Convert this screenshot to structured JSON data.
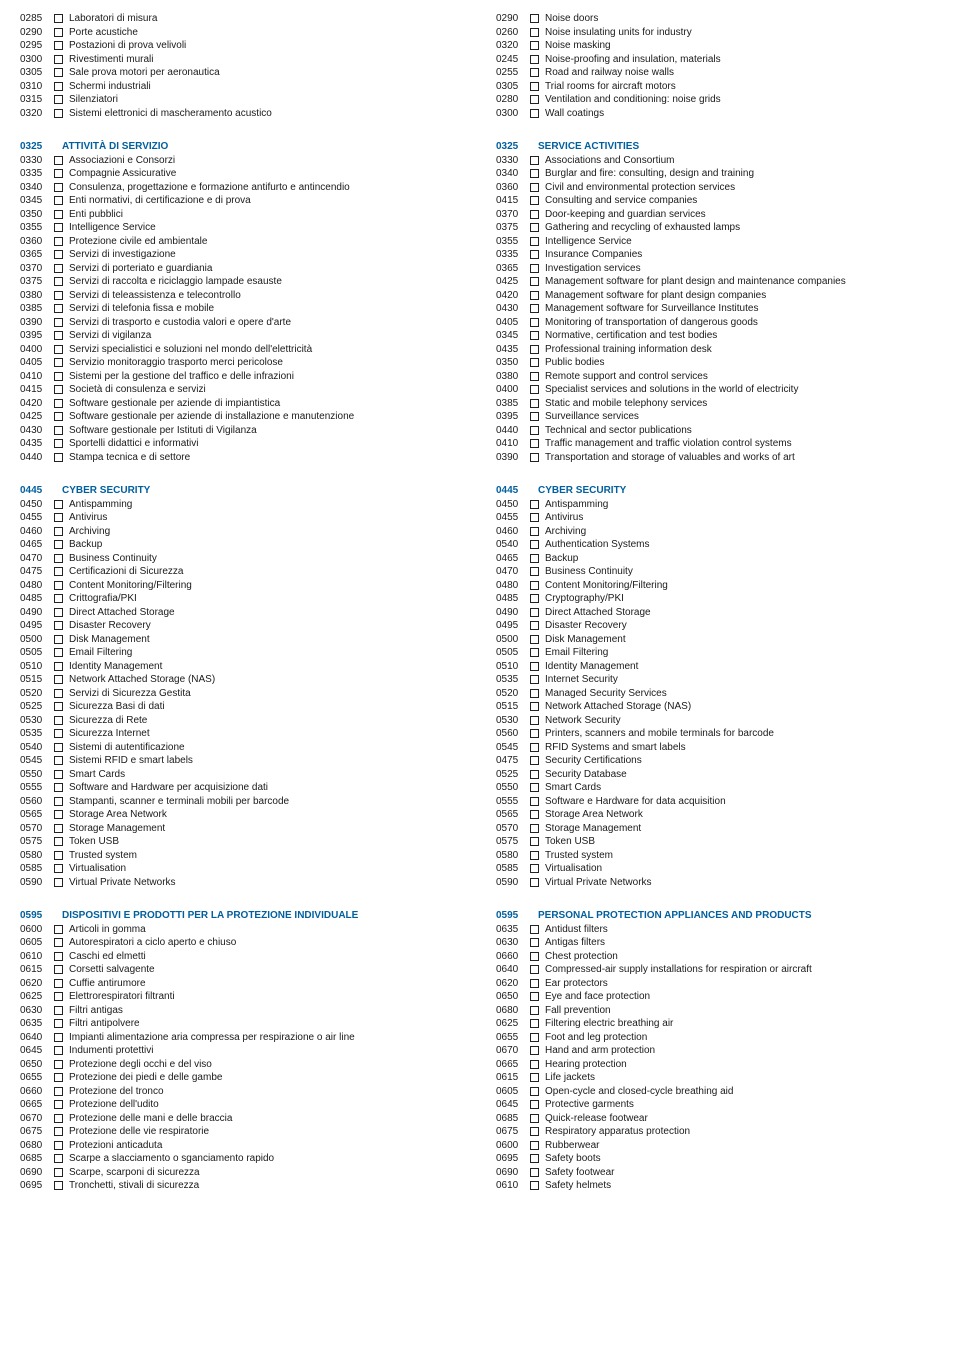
{
  "accent_color": "#005f9e",
  "text_color": "#1a1a1a",
  "left": [
    {
      "type": "items",
      "items": [
        {
          "code": "0285",
          "label": "Laboratori di misura"
        },
        {
          "code": "0290",
          "label": "Porte acustiche"
        },
        {
          "code": "0295",
          "label": "Postazioni di prova velivoli"
        },
        {
          "code": "0300",
          "label": "Rivestimenti murali"
        },
        {
          "code": "0305",
          "label": "Sale prova motori per aeronautica"
        },
        {
          "code": "0310",
          "label": "Schermi industriali"
        },
        {
          "code": "0315",
          "label": "Silenziatori"
        },
        {
          "code": "0320",
          "label": "Sistemi elettronici di mascheramento acustico"
        }
      ]
    },
    {
      "type": "section",
      "code": "0325",
      "title": "ATTIVITÀ DI SERVIZIO",
      "items": [
        {
          "code": "0330",
          "label": "Associazioni e Consorzi"
        },
        {
          "code": "0335",
          "label": "Compagnie Assicurative"
        },
        {
          "code": "0340",
          "label": "Consulenza, progettazione e formazione antifurto e antincendio"
        },
        {
          "code": "0345",
          "label": "Enti normativi, di certificazione e di prova"
        },
        {
          "code": "0350",
          "label": "Enti pubblici"
        },
        {
          "code": "0355",
          "label": "Intelligence Service"
        },
        {
          "code": "0360",
          "label": "Protezione civile ed ambientale"
        },
        {
          "code": "0365",
          "label": "Servizi di investigazione"
        },
        {
          "code": "0370",
          "label": "Servizi di porteriato e guardiania"
        },
        {
          "code": "0375",
          "label": "Servizi di raccolta e riciclaggio lampade esauste"
        },
        {
          "code": "0380",
          "label": "Servizi di teleassistenza e telecontrollo"
        },
        {
          "code": "0385",
          "label": "Servizi di telefonia fissa e mobile"
        },
        {
          "code": "0390",
          "label": "Servizi di trasporto e custodia valori e opere d'arte"
        },
        {
          "code": "0395",
          "label": "Servizi di vigilanza"
        },
        {
          "code": "0400",
          "label": "Servizi specialistici e soluzioni nel mondo dell'elettricità"
        },
        {
          "code": "0405",
          "label": "Servizio monitoraggio trasporto merci pericolose"
        },
        {
          "code": "0410",
          "label": "Sistemi per la gestione del traffico e delle infrazioni"
        },
        {
          "code": "0415",
          "label": "Società di consulenza e servizi"
        },
        {
          "code": "0420",
          "label": "Software gestionale per aziende di impiantistica"
        },
        {
          "code": "0425",
          "label": "Software gestionale per aziende di installazione e manutenzione"
        },
        {
          "code": "0430",
          "label": "Software gestionale per Istituti di Vigilanza"
        },
        {
          "code": "0435",
          "label": "Sportelli didattici e informativi"
        },
        {
          "code": "0440",
          "label": "Stampa tecnica e di settore"
        }
      ]
    },
    {
      "type": "section",
      "code": "0445",
      "title": "CYBER SECURITY",
      "items": [
        {
          "code": "0450",
          "label": "Antispamming"
        },
        {
          "code": "0455",
          "label": "Antivirus"
        },
        {
          "code": "0460",
          "label": "Archiving"
        },
        {
          "code": "0465",
          "label": "Backup"
        },
        {
          "code": "0470",
          "label": "Business Continuity"
        },
        {
          "code": "0475",
          "label": "Certificazioni di Sicurezza"
        },
        {
          "code": "0480",
          "label": "Content Monitoring/Filtering"
        },
        {
          "code": "0485",
          "label": "Crittografia/PKI"
        },
        {
          "code": "0490",
          "label": "Direct Attached Storage"
        },
        {
          "code": "0495",
          "label": "Disaster Recovery"
        },
        {
          "code": "0500",
          "label": "Disk Management"
        },
        {
          "code": "0505",
          "label": "Email Filtering"
        },
        {
          "code": "0510",
          "label": "Identity Management"
        },
        {
          "code": "0515",
          "label": "Network Attached Storage (NAS)"
        },
        {
          "code": "0520",
          "label": "Servizi di Sicurezza Gestita"
        },
        {
          "code": "0525",
          "label": "Sicurezza Basi di dati"
        },
        {
          "code": "0530",
          "label": "Sicurezza di Rete"
        },
        {
          "code": "0535",
          "label": "Sicurezza Internet"
        },
        {
          "code": "0540",
          "label": "Sistemi di autentificazione"
        },
        {
          "code": "0545",
          "label": "Sistemi RFID e smart labels"
        },
        {
          "code": "0550",
          "label": "Smart Cards"
        },
        {
          "code": "0555",
          "label": "Software and Hardware per acquisizione dati"
        },
        {
          "code": "0560",
          "label": "Stampanti, scanner e terminali mobili per barcode"
        },
        {
          "code": "0565",
          "label": "Storage Area Network"
        },
        {
          "code": "0570",
          "label": "Storage Management"
        },
        {
          "code": "0575",
          "label": "Token USB"
        },
        {
          "code": "0580",
          "label": "Trusted system"
        },
        {
          "code": "0585",
          "label": "Virtualisation"
        },
        {
          "code": "0590",
          "label": "Virtual Private Networks"
        }
      ]
    },
    {
      "type": "section",
      "code": "0595",
      "title": "DISPOSITIVI E PRODOTTI PER LA PROTEZIONE INDIVIDUALE",
      "items": [
        {
          "code": "0600",
          "label": "Articoli in gomma"
        },
        {
          "code": "0605",
          "label": "Autorespiratori a ciclo aperto e chiuso"
        },
        {
          "code": "0610",
          "label": "Caschi ed elmetti"
        },
        {
          "code": "0615",
          "label": "Corsetti salvagente"
        },
        {
          "code": "0620",
          "label": "Cuffie antirumore"
        },
        {
          "code": "0625",
          "label": "Elettrorespiratori filtranti"
        },
        {
          "code": "0630",
          "label": "Filtri antigas"
        },
        {
          "code": "0635",
          "label": "Filtri antipolvere"
        },
        {
          "code": "0640",
          "label": "Impianti alimentazione aria compressa per respirazione o air line"
        },
        {
          "code": "0645",
          "label": "Indumenti protettivi"
        },
        {
          "code": "0650",
          "label": "Protezione degli occhi e del viso"
        },
        {
          "code": "0655",
          "label": "Protezione dei piedi e delle gambe"
        },
        {
          "code": "0660",
          "label": "Protezione del tronco"
        },
        {
          "code": "0665",
          "label": "Protezione dell'udito"
        },
        {
          "code": "0670",
          "label": "Protezione delle mani e delle braccia"
        },
        {
          "code": "0675",
          "label": "Protezione delle vie respiratorie"
        },
        {
          "code": "0680",
          "label": "Protezioni anticaduta"
        },
        {
          "code": "0685",
          "label": "Scarpe a slacciamento o sganciamento rapido"
        },
        {
          "code": "0690",
          "label": "Scarpe, scarponi di sicurezza"
        },
        {
          "code": "0695",
          "label": "Tronchetti, stivali di sicurezza"
        }
      ]
    }
  ],
  "right": [
    {
      "type": "items",
      "items": [
        {
          "code": "0290",
          "label": "Noise doors"
        },
        {
          "code": "0260",
          "label": "Noise insulating units for industry"
        },
        {
          "code": "0320",
          "label": "Noise masking"
        },
        {
          "code": "0245",
          "label": "Noise-proofing and insulation, materials"
        },
        {
          "code": "0255",
          "label": "Road and railway noise walls"
        },
        {
          "code": "0305",
          "label": "Trial rooms for aircraft motors"
        },
        {
          "code": "0280",
          "label": "Ventilation and conditioning: noise grids"
        },
        {
          "code": "0300",
          "label": "Wall coatings"
        }
      ]
    },
    {
      "type": "section",
      "code": "0325",
      "title": "SERVICE ACTIVITIES",
      "items": [
        {
          "code": "0330",
          "label": "Associations and Consortium"
        },
        {
          "code": "0340",
          "label": "Burglar and fire: consulting, design and training"
        },
        {
          "code": "0360",
          "label": "Civil and environmental protection services"
        },
        {
          "code": "0415",
          "label": "Consulting and service companies"
        },
        {
          "code": "0370",
          "label": "Door-keeping and guardian services"
        },
        {
          "code": "0375",
          "label": "Gathering and recycling of exhausted lamps"
        },
        {
          "code": "0355",
          "label": "Intelligence Service"
        },
        {
          "code": "0335",
          "label": "Insurance Companies"
        },
        {
          "code": "0365",
          "label": "Investigation services"
        },
        {
          "code": "0425",
          "label": "Management software for plant design and maintenance companies"
        },
        {
          "code": "0420",
          "label": "Management software for plant design companies"
        },
        {
          "code": "0430",
          "label": "Management software for Surveillance Institutes"
        },
        {
          "code": "0405",
          "label": "Monitoring of transportation of dangerous goods"
        },
        {
          "code": "0345",
          "label": "Normative, certification and test bodies"
        },
        {
          "code": "0435",
          "label": "Professional training information desk"
        },
        {
          "code": "0350",
          "label": "Public bodies"
        },
        {
          "code": "0380",
          "label": "Remote support and control services"
        },
        {
          "code": "0400",
          "label": "Specialist services and solutions in the world of electricity"
        },
        {
          "code": "0385",
          "label": "Static and mobile telephony services"
        },
        {
          "code": "0395",
          "label": "Surveillance services"
        },
        {
          "code": "0440",
          "label": "Technical and sector publications"
        },
        {
          "code": "0410",
          "label": "Traffic management and traffic violation control systems"
        },
        {
          "code": "0390",
          "label": "Transportation and storage of valuables and works of art"
        }
      ]
    },
    {
      "type": "section",
      "code": "0445",
      "title": "CYBER SECURITY",
      "items": [
        {
          "code": "0450",
          "label": "Antispamming"
        },
        {
          "code": "0455",
          "label": "Antivirus"
        },
        {
          "code": "0460",
          "label": "Archiving"
        },
        {
          "code": "0540",
          "label": "Authentication Systems"
        },
        {
          "code": "0465",
          "label": "Backup"
        },
        {
          "code": "0470",
          "label": "Business Continuity"
        },
        {
          "code": "0480",
          "label": "Content Monitoring/Filtering"
        },
        {
          "code": "0485",
          "label": "Cryptography/PKI"
        },
        {
          "code": "0490",
          "label": "Direct Attached Storage"
        },
        {
          "code": "0495",
          "label": "Disaster Recovery"
        },
        {
          "code": "0500",
          "label": "Disk Management"
        },
        {
          "code": "0505",
          "label": "Email Filtering"
        },
        {
          "code": "0510",
          "label": "Identity Management"
        },
        {
          "code": "0535",
          "label": "Internet Security"
        },
        {
          "code": "0520",
          "label": "Managed Security Services"
        },
        {
          "code": "0515",
          "label": "Network Attached Storage (NAS)"
        },
        {
          "code": "0530",
          "label": "Network Security"
        },
        {
          "code": "0560",
          "label": "Printers, scanners and mobile terminals for barcode"
        },
        {
          "code": "0545",
          "label": "RFID Systems and smart labels"
        },
        {
          "code": "0475",
          "label": "Security Certifications"
        },
        {
          "code": "0525",
          "label": "Security Database"
        },
        {
          "code": "0550",
          "label": "Smart Cards"
        },
        {
          "code": "0555",
          "label": "Software e Hardware for data acquisition"
        },
        {
          "code": "0565",
          "label": "Storage Area Network"
        },
        {
          "code": "0570",
          "label": "Storage Management"
        },
        {
          "code": "0575",
          "label": "Token USB"
        },
        {
          "code": "0580",
          "label": "Trusted system"
        },
        {
          "code": "0585",
          "label": "Virtualisation"
        },
        {
          "code": "0590",
          "label": "Virtual Private Networks"
        }
      ]
    },
    {
      "type": "section",
      "code": "0595",
      "title": "PERSONAL PROTECTION APPLIANCES AND PRODUCTS",
      "items": [
        {
          "code": "0635",
          "label": "Antidust filters"
        },
        {
          "code": "0630",
          "label": "Antigas filters"
        },
        {
          "code": "0660",
          "label": "Chest protection"
        },
        {
          "code": "0640",
          "label": "Compressed-air supply installations for respiration or aircraft"
        },
        {
          "code": "0620",
          "label": "Ear protectors"
        },
        {
          "code": "0650",
          "label": "Eye and face protection"
        },
        {
          "code": "0680",
          "label": "Fall prevention"
        },
        {
          "code": "0625",
          "label": "Filtering electric breathing air"
        },
        {
          "code": "0655",
          "label": "Foot and leg protection"
        },
        {
          "code": "0670",
          "label": "Hand and arm protection"
        },
        {
          "code": "0665",
          "label": "Hearing protection"
        },
        {
          "code": "0615",
          "label": "Life jackets"
        },
        {
          "code": "0605",
          "label": "Open-cycle and closed-cycle breathing aid"
        },
        {
          "code": "0645",
          "label": "Protective garments"
        },
        {
          "code": "0685",
          "label": "Quick-release footwear"
        },
        {
          "code": "0675",
          "label": "Respiratory apparatus protection"
        },
        {
          "code": "0600",
          "label": "Rubberwear"
        },
        {
          "code": "0695",
          "label": "Safety boots"
        },
        {
          "code": "0690",
          "label": "Safety footwear"
        },
        {
          "code": "0610",
          "label": "Safety helmets"
        }
      ]
    }
  ]
}
